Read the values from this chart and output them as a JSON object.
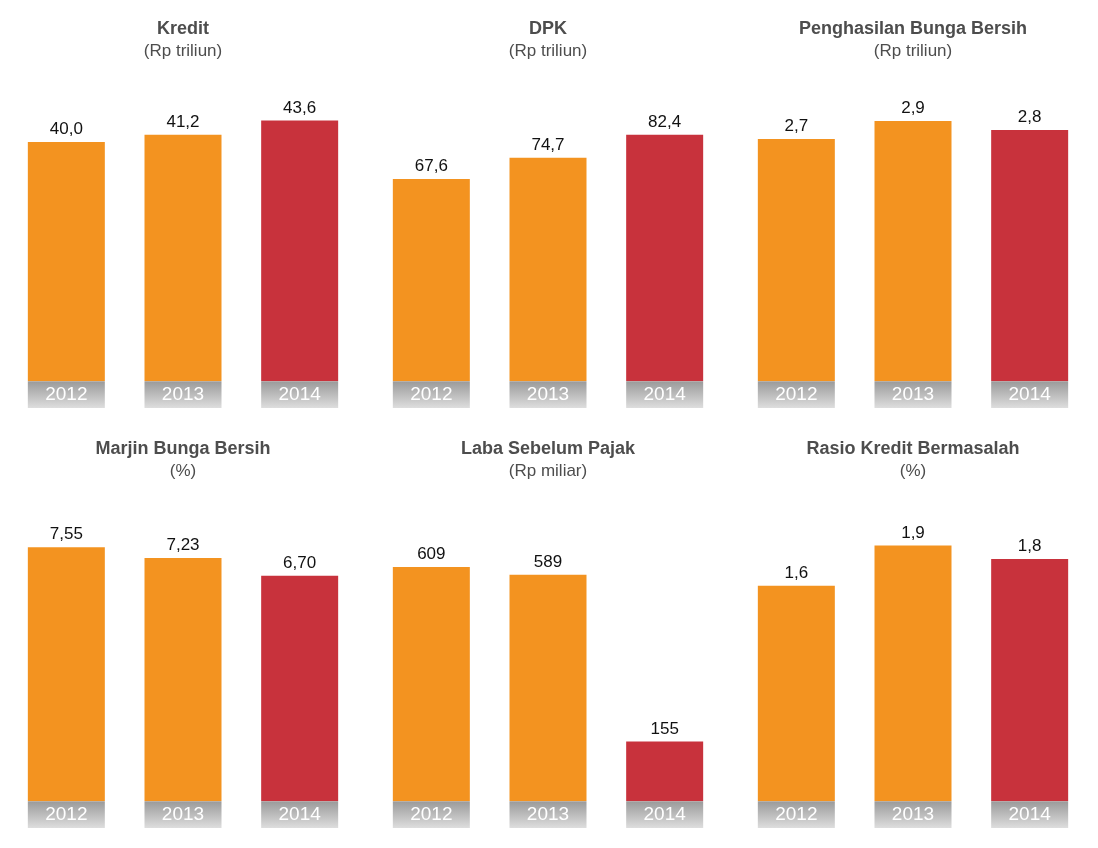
{
  "chart_data": [
    {
      "type": "bar",
      "title": "Kredit",
      "subtitle": "(Rp triliun)",
      "categories": [
        "2012",
        "2013",
        "2014"
      ],
      "values": [
        40.0,
        41.2,
        43.6
      ],
      "colors": [
        "#f39320",
        "#f39320",
        "#c8323c"
      ],
      "value_labels": [
        "40,0",
        "41,2",
        "43,6"
      ],
      "legend": false,
      "grid": false
    },
    {
      "type": "bar",
      "title": "DPK",
      "subtitle": "(Rp triliun)",
      "categories": [
        "2012",
        "2013",
        "2014"
      ],
      "values": [
        67.6,
        74.7,
        82.4
      ],
      "colors": [
        "#f39320",
        "#f39320",
        "#c8323c"
      ],
      "value_labels": [
        "67,6",
        "74,7",
        "82,4"
      ],
      "legend": false,
      "grid": false
    },
    {
      "type": "bar",
      "title": "Penghasilan Bunga Bersih",
      "subtitle": "(Rp triliun)",
      "categories": [
        "2012",
        "2013",
        "2014"
      ],
      "values": [
        2.7,
        2.9,
        2.8
      ],
      "colors": [
        "#f39320",
        "#f39320",
        "#c8323c"
      ],
      "value_labels": [
        "2,7",
        "2,9",
        "2,8"
      ],
      "legend": false,
      "grid": false
    },
    {
      "type": "bar",
      "title": "Marjin Bunga Bersih",
      "subtitle": "(%)",
      "categories": [
        "2012",
        "2013",
        "2014"
      ],
      "values": [
        7.55,
        7.23,
        6.7
      ],
      "colors": [
        "#f39320",
        "#f39320",
        "#c8323c"
      ],
      "value_labels": [
        "7,55",
        "7,23",
        "6,70"
      ],
      "legend": false,
      "grid": false
    },
    {
      "type": "bar",
      "title": "Laba Sebelum Pajak",
      "subtitle": "(Rp miliar)",
      "categories": [
        "2012",
        "2013",
        "2014"
      ],
      "values": [
        609,
        589,
        155
      ],
      "colors": [
        "#f39320",
        "#f39320",
        "#c8323c"
      ],
      "value_labels": [
        "609",
        "589",
        "155"
      ],
      "legend": false,
      "grid": false
    },
    {
      "type": "bar",
      "title": "Rasio Kredit Bermasalah",
      "subtitle": "(%)",
      "categories": [
        "2012",
        "2013",
        "2014"
      ],
      "values": [
        1.6,
        1.9,
        1.8
      ],
      "colors": [
        "#f39320",
        "#f39320",
        "#c8323c"
      ],
      "value_labels": [
        "1,6",
        "1,9",
        "1,8"
      ],
      "legend": false,
      "grid": false
    }
  ]
}
